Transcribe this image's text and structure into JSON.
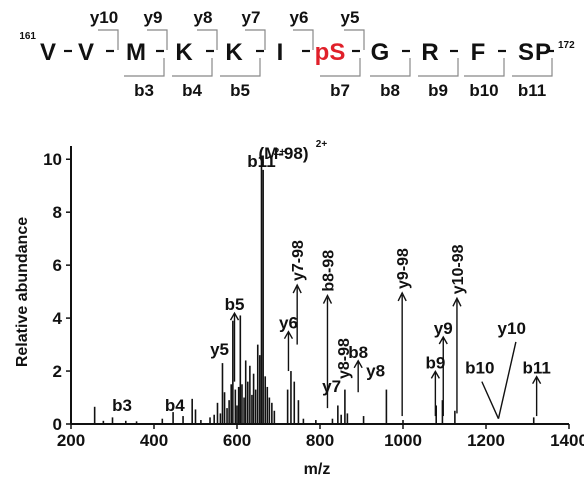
{
  "peptide": {
    "start_index": "161",
    "end_index": "172",
    "residues": [
      "V",
      "V",
      "M",
      "K",
      "K",
      "I",
      "pS",
      "G",
      "R",
      "F",
      "S",
      "P"
    ],
    "highlight_residue": "pS",
    "highlight_color": "#e0202a",
    "y_ions": [
      "y10",
      "y9",
      "y8",
      "y7",
      "y6",
      "y5"
    ],
    "b_ions": [
      "b3",
      "b4",
      "b5",
      "b7",
      "b8",
      "b9",
      "b10",
      "b11"
    ]
  },
  "chart_data": {
    "type": "bar",
    "xlabel": "m/z",
    "ylabel": "Relative abundance",
    "xlim": [
      200,
      1400
    ],
    "ylim": [
      0,
      10.5
    ],
    "x_ticks": [
      200,
      400,
      600,
      800,
      1000,
      1200,
      1400
    ],
    "y_ticks": [
      0,
      2,
      4,
      6,
      8,
      10
    ],
    "peaks": [
      {
        "x": 257,
        "y": 0.65
      },
      {
        "x": 278,
        "y": 0.12
      },
      {
        "x": 300,
        "y": 0.25
      },
      {
        "x": 332,
        "y": 0.12
      },
      {
        "x": 358,
        "y": 0.1
      },
      {
        "x": 420,
        "y": 0.2
      },
      {
        "x": 446,
        "y": 0.45
      },
      {
        "x": 470,
        "y": 0.3
      },
      {
        "x": 492,
        "y": 0.95
      },
      {
        "x": 500,
        "y": 0.55
      },
      {
        "x": 513,
        "y": 0.15
      },
      {
        "x": 535,
        "y": 0.25
      },
      {
        "x": 545,
        "y": 0.35
      },
      {
        "x": 553,
        "y": 0.8
      },
      {
        "x": 560,
        "y": 0.4
      },
      {
        "x": 565,
        "y": 2.3
      },
      {
        "x": 570,
        "y": 1.2
      },
      {
        "x": 576,
        "y": 0.6
      },
      {
        "x": 581,
        "y": 0.9
      },
      {
        "x": 586,
        "y": 1.5
      },
      {
        "x": 590,
        "y": 3.9
      },
      {
        "x": 596,
        "y": 1.3
      },
      {
        "x": 600,
        "y": 0.7
      },
      {
        "x": 604,
        "y": 1.4
      },
      {
        "x": 608,
        "y": 4.1
      },
      {
        "x": 612,
        "y": 1.5
      },
      {
        "x": 617,
        "y": 1.0
      },
      {
        "x": 621,
        "y": 2.4
      },
      {
        "x": 626,
        "y": 1.6
      },
      {
        "x": 631,
        "y": 2.2
      },
      {
        "x": 636,
        "y": 1.1
      },
      {
        "x": 640,
        "y": 1.9
      },
      {
        "x": 645,
        "y": 1.3
      },
      {
        "x": 650,
        "y": 3.0
      },
      {
        "x": 655,
        "y": 2.6
      },
      {
        "x": 659,
        "y": 10.0
      },
      {
        "x": 663,
        "y": 9.6
      },
      {
        "x": 668,
        "y": 1.8
      },
      {
        "x": 673,
        "y": 1.4
      },
      {
        "x": 678,
        "y": 1.0
      },
      {
        "x": 684,
        "y": 0.8
      },
      {
        "x": 690,
        "y": 0.5
      },
      {
        "x": 722,
        "y": 1.3
      },
      {
        "x": 730,
        "y": 2.0
      },
      {
        "x": 738,
        "y": 1.6
      },
      {
        "x": 748,
        "y": 0.9
      },
      {
        "x": 760,
        "y": 0.2
      },
      {
        "x": 790,
        "y": 0.15
      },
      {
        "x": 830,
        "y": 0.2
      },
      {
        "x": 843,
        "y": 0.7
      },
      {
        "x": 851,
        "y": 0.35
      },
      {
        "x": 860,
        "y": 1.3
      },
      {
        "x": 866,
        "y": 0.4
      },
      {
        "x": 905,
        "y": 0.3
      },
      {
        "x": 960,
        "y": 1.3
      },
      {
        "x": 1000,
        "y": 0.15
      },
      {
        "x": 1080,
        "y": 0.7
      },
      {
        "x": 1095,
        "y": 0.9
      },
      {
        "x": 1125,
        "y": 0.5
      },
      {
        "x": 1315,
        "y": 0.25
      }
    ],
    "annotations": [
      {
        "label": "b3",
        "x": 323,
        "y": 0.5,
        "arrow": false
      },
      {
        "label": "b4",
        "x": 450,
        "y": 0.5,
        "arrow": false
      },
      {
        "label": "y5",
        "x": 558,
        "y": 2.6,
        "arrow": false
      },
      {
        "label": "b5",
        "x": 594,
        "y": 4.3,
        "arrow": true,
        "arrow_to": 1.6
      },
      {
        "label": "b11",
        "label_suffix": "2+",
        "x": 659,
        "y": 9.7,
        "arrow": false
      },
      {
        "label": "(M-98)",
        "label_suffix": "2+",
        "x": 712,
        "y": 10.0,
        "arrow": false
      },
      {
        "label": "y6",
        "x": 724,
        "y": 3.6,
        "arrow": true,
        "arrow_to": 2.0
      },
      {
        "label": "y7-98",
        "x": 745,
        "y": 5.4,
        "arrow": true,
        "arrow_to": 3.0,
        "vertical": true
      },
      {
        "label": "y7",
        "x": 828,
        "y": 1.2,
        "arrow": false
      },
      {
        "label": "b8-98",
        "x": 818,
        "y": 5.0,
        "arrow": true,
        "arrow_to": 0.6,
        "vertical": true
      },
      {
        "label": "y8-98",
        "x": 855,
        "y": 1.7,
        "arrow": false,
        "vertical": true
      },
      {
        "label": "b8",
        "x": 892,
        "y": 2.5,
        "arrow": true,
        "arrow_to": 1.2
      },
      {
        "label": "y8",
        "x": 934,
        "y": 1.8,
        "arrow": false
      },
      {
        "label": "y9-98",
        "x": 998,
        "y": 5.1,
        "arrow": true,
        "arrow_to": 0.3,
        "vertical": true
      },
      {
        "label": "b9",
        "x": 1078,
        "y": 2.1,
        "arrow": true,
        "arrow_to": 0.3
      },
      {
        "label": "y9",
        "x": 1097,
        "y": 3.4,
        "arrow": true,
        "arrow_to": 0.3
      },
      {
        "label": "y10-98",
        "x": 1130,
        "y": 4.9,
        "arrow": true,
        "arrow_to": 0.4,
        "vertical": true
      },
      {
        "label": "b10",
        "x": 1185,
        "y": 1.9,
        "arrow": false
      },
      {
        "label": "y10",
        "x": 1262,
        "y": 3.4,
        "arrow": false
      },
      {
        "label": "b11",
        "x": 1322,
        "y": 1.9,
        "arrow": true,
        "arrow_to": 0.3
      }
    ]
  }
}
